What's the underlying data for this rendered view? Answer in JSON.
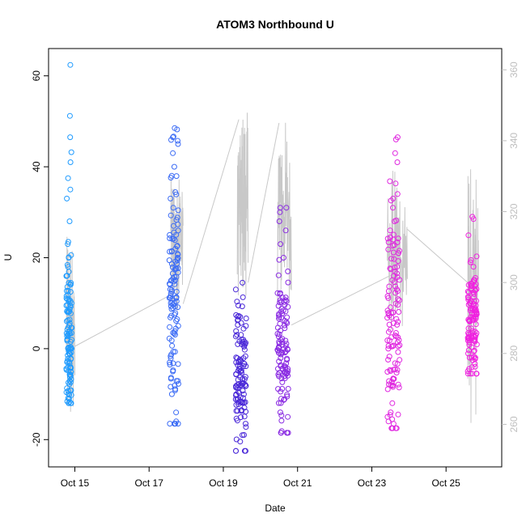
{
  "chart_data": {
    "type": "scatter",
    "title": "ATOM3 Northbound U",
    "xlabel": "Date",
    "ylabel": "U",
    "x_axis_type": "date",
    "x_ticks": [
      {
        "date": "2015-10-15",
        "label": "Oct 15"
      },
      {
        "date": "2015-10-17",
        "label": "Oct 17"
      },
      {
        "date": "2015-10-19",
        "label": "Oct 19"
      },
      {
        "date": "2015-10-21",
        "label": "Oct 21"
      },
      {
        "date": "2015-10-23",
        "label": "Oct 23"
      },
      {
        "date": "2015-10-25",
        "label": "Oct 25"
      }
    ],
    "xlim": [
      "2015-10-14 07:00",
      "2015-10-26 12:00"
    ],
    "ylim": [
      -26,
      66
    ],
    "y_ticks": [
      -20,
      0,
      20,
      40,
      60
    ],
    "y2_ticks": [
      260,
      280,
      300,
      320,
      340,
      360
    ],
    "y2lim": [
      248,
      366
    ],
    "grid": false,
    "point_style": "open-circle",
    "secondary_line_color": "#c8c8c8",
    "clusters": [
      {
        "start": "2015-10-14 18:30",
        "end": "2015-10-14 22:00",
        "color": "#1e9bff",
        "ymin": -12,
        "ymax": 62.5,
        "center": 1,
        "spread": 9,
        "highlights": [
          62.4,
          51.2,
          46.5,
          43.2,
          41,
          37.5,
          35,
          33,
          28,
          23,
          20,
          16,
          10,
          -11
        ]
      },
      {
        "start": "2015-10-17 13:00",
        "end": "2015-10-17 19:00",
        "color": "#3c6cf5",
        "ymin": -16.5,
        "ymax": 48.5,
        "center": 12,
        "spread": 15,
        "highlights": [
          48.2,
          46.5,
          45,
          43,
          40,
          38,
          33,
          31,
          27,
          25,
          22,
          20,
          15,
          10,
          5,
          -5,
          -10,
          -16
        ]
      },
      {
        "start": "2015-10-19 08:00",
        "end": "2015-10-19 15:00",
        "color": "#4a28d8",
        "ymin": -22.5,
        "ymax": 14.5,
        "center": -5,
        "spread": 7,
        "highlights": [
          -22.5,
          -19,
          -16.5,
          -13,
          14.5,
          13,
          9.5,
          7,
          5,
          2
        ]
      },
      {
        "start": "2015-10-20 11:00",
        "end": "2015-10-20 18:00",
        "color": "#8a2be2",
        "ymin": -18.5,
        "ymax": 31,
        "center": 0,
        "spread": 10,
        "highlights": [
          31,
          30,
          28,
          26,
          23,
          20,
          17,
          -18.5,
          -15,
          -11
        ]
      },
      {
        "start": "2015-10-23 10:00",
        "end": "2015-10-23 18:00",
        "color": "#e028e0",
        "ymin": -17.5,
        "ymax": 46.5,
        "center": 5,
        "spread": 13,
        "highlights": [
          46.5,
          46,
          43,
          41,
          34,
          33,
          31,
          28,
          26,
          24,
          21,
          18,
          -17.5,
          -16,
          -14,
          -12
        ]
      },
      {
        "start": "2015-10-25 14:00",
        "end": "2015-10-25 20:00",
        "color": "#f020e0",
        "ymin": -5.5,
        "ymax": 29,
        "center": 6,
        "spread": 6,
        "highlights": [
          29,
          28.5,
          19,
          18,
          14,
          12,
          -5.5,
          -2
        ]
      }
    ],
    "secondary_line_segments": [
      {
        "start": "2015-10-14 18:30",
        "end": "2015-10-15 00:00",
        "ymin": 260,
        "ymax": 313
      },
      {
        "start": "2015-10-15 00:00",
        "end": "2015-10-17 16:00",
        "from": 282,
        "to": 297
      },
      {
        "start": "2015-10-17 14:00",
        "end": "2015-10-17 22:00",
        "ymin": 292,
        "ymax": 334
      },
      {
        "start": "2015-10-17 22:00",
        "end": "2015-10-19 10:00",
        "from": 294,
        "to": 346
      },
      {
        "start": "2015-10-19 09:00",
        "end": "2015-10-19 16:00",
        "ymin": 296,
        "ymax": 348
      },
      {
        "start": "2015-10-19 16:00",
        "end": "2015-10-20 12:00",
        "from": 300,
        "to": 345
      },
      {
        "start": "2015-10-20 11:00",
        "end": "2015-10-20 20:00",
        "ymin": 294,
        "ymax": 346
      },
      {
        "start": "2015-10-20 20:00",
        "end": "2015-10-23 12:00",
        "from": 288,
        "to": 302
      },
      {
        "start": "2015-10-23 10:00",
        "end": "2015-10-23 23:00",
        "ymin": 284,
        "ymax": 332
      },
      {
        "start": "2015-10-23 23:00",
        "end": "2015-10-25 14:00",
        "from": 315,
        "to": 300
      },
      {
        "start": "2015-10-25 14:00",
        "end": "2015-10-25 21:00",
        "ymin": 259,
        "ymax": 333
      }
    ]
  }
}
